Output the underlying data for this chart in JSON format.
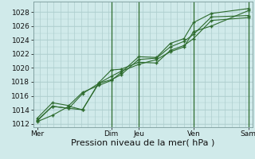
{
  "bg_color": "#d0eaea",
  "grid_color": "#aecece",
  "line_color": "#2d6b2d",
  "vline_color": "#2d6b2d",
  "xlabel": "Pression niveau de la mer( hPa )",
  "xlabel_fontsize": 8,
  "tick_fontsize": 6.5,
  "ylim": [
    1011.5,
    1029.5
  ],
  "yticks": [
    1012,
    1014,
    1016,
    1018,
    1020,
    1022,
    1024,
    1026,
    1028
  ],
  "xlim": [
    0,
    8.0
  ],
  "day_labels": [
    "Mer",
    "Dim",
    "Jeu",
    "Ven",
    "Sam"
  ],
  "day_x": [
    0.15,
    2.85,
    3.85,
    5.85,
    7.85
  ],
  "vline_positions": [
    2.85,
    3.85,
    5.85,
    7.85
  ],
  "series": [
    [
      1012.3,
      1013.2,
      1014.5,
      1014.0,
      1017.8,
      1018.8,
      1019.5,
      1020.5,
      1021.2,
      1022.3,
      1023.0,
      1025.2,
      1026.0,
      1028.2
    ],
    [
      1012.4,
      1014.5,
      1014.2,
      1014.0,
      1017.9,
      1019.7,
      1019.8,
      1020.8,
      1020.7,
      1022.5,
      1023.2,
      1024.2,
      1026.8,
      1027.2
    ],
    [
      1012.5,
      1014.5,
      1014.2,
      1016.3,
      1017.8,
      1018.3,
      1019.0,
      1021.2,
      1021.4,
      1023.0,
      1023.8,
      1024.8,
      1027.3,
      1027.5
    ],
    [
      1012.8,
      1015.0,
      1014.6,
      1016.5,
      1017.5,
      1018.2,
      1019.3,
      1021.6,
      1021.5,
      1023.5,
      1024.2,
      1026.5,
      1027.8,
      1028.5
    ]
  ],
  "x_points": [
    0.15,
    0.7,
    1.3,
    1.8,
    2.4,
    2.85,
    3.2,
    3.85,
    4.5,
    5.0,
    5.5,
    5.85,
    6.5,
    7.85
  ]
}
